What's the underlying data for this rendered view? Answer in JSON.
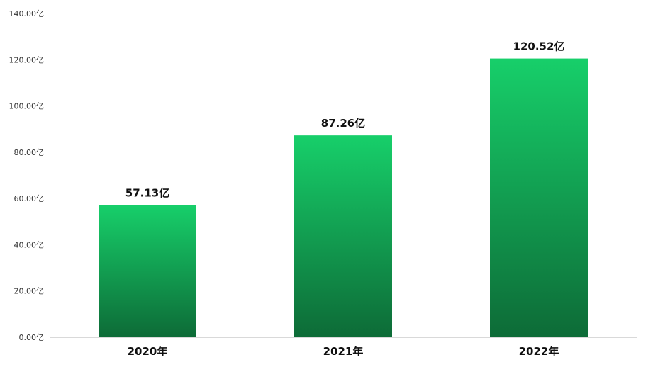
{
  "chart_data": {
    "type": "bar",
    "categories": [
      "2020年",
      "2021年",
      "2022年"
    ],
    "values": [
      57.13,
      87.26,
      120.52
    ],
    "data_labels": [
      "57.13亿",
      "87.26亿",
      "120.52亿"
    ],
    "y_ticks": [
      "0.00亿",
      "20.00亿",
      "40.00亿",
      "60.00亿",
      "80.00亿",
      "100.00亿",
      "120.00亿",
      "140.00亿"
    ],
    "ylim": [
      0,
      140
    ],
    "title": "",
    "xlabel": "",
    "ylabel": "",
    "grid": false,
    "legend": "none",
    "colors": {
      "bar_top": "#17cf6a",
      "bar_bottom": "#0d6b37",
      "axis": "#d9d9d9"
    }
  }
}
